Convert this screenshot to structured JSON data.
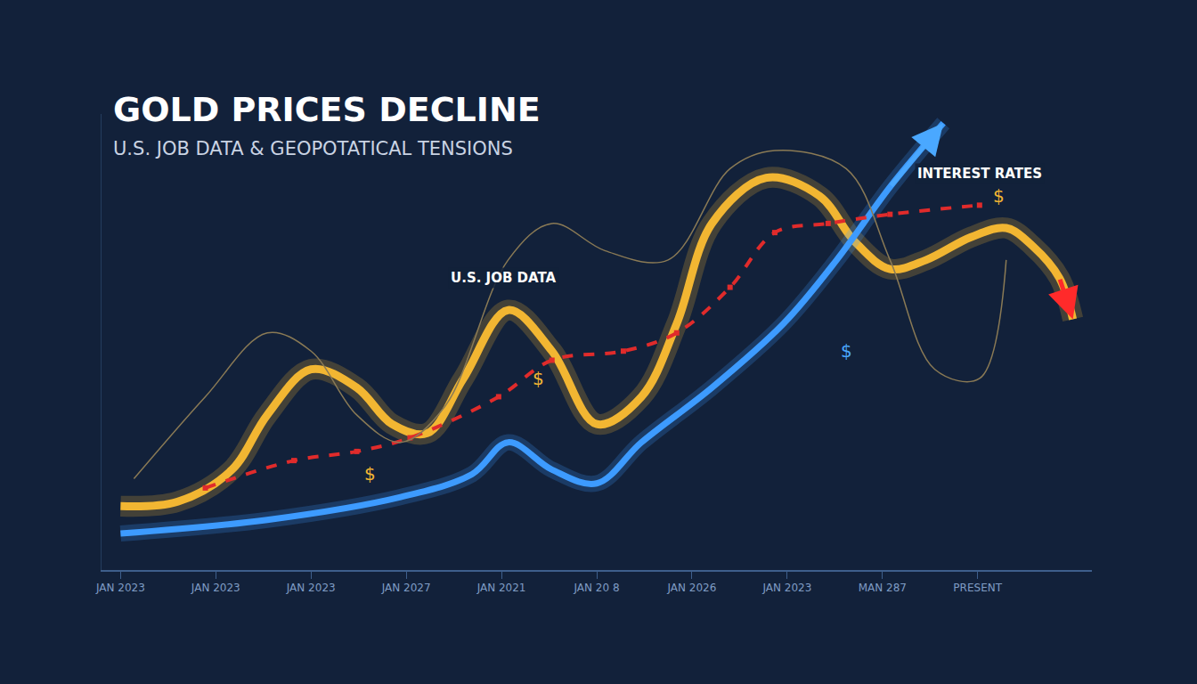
{
  "chart_data": {
    "type": "line",
    "title": "GOLD PRICES DECLINE",
    "subtitle": "U.S. JOB DATA & GEOPOTATICAL TENSIONS",
    "annotations": [
      "U.S. JOB DATA",
      "INTEREST RATES",
      "$",
      "$",
      "$",
      "$"
    ],
    "xlim": [
      -0.2,
      10.2
    ],
    "xticks": [
      {
        "value": 0,
        "label": "JAN 2023"
      },
      {
        "value": 1,
        "label": "JAN 2023"
      },
      {
        "value": 2,
        "label": "JAN 2023"
      },
      {
        "value": 3,
        "label": "JAN 2027"
      },
      {
        "value": 4,
        "label": "JAN 2021"
      },
      {
        "value": 5,
        "label": "JAN 20 8"
      },
      {
        "value": 6,
        "label": "JAN 2026"
      },
      {
        "value": 7,
        "label": "JAN 2023"
      },
      {
        "value": 8,
        "label": "MAN 287"
      },
      {
        "value": 9,
        "label": "PRESENT"
      }
    ],
    "ylim": [
      0,
      100
    ],
    "tick_labels": "x",
    "grid": false,
    "series": [
      {
        "color": "#f2b632",
        "line_style": "solid",
        "x": [
          0,
          0.6,
          1.17,
          1.54,
          2.0,
          2.48,
          2.85,
          3.22,
          3.6,
          4.07,
          4.53,
          5.0,
          5.47,
          5.84,
          6.21,
          6.78,
          7.34,
          7.71,
          8.08,
          8.46,
          8.93,
          9.3,
          9.58,
          9.86,
          10.0
        ],
        "values": [
          14,
          15,
          22,
          34,
          44,
          40,
          32,
          30,
          42,
          57,
          48,
          32,
          38,
          54,
          76,
          86,
          82,
          72,
          66,
          68,
          73,
          75,
          71,
          64,
          55
        ]
      },
      {
        "color": "#3d9bff",
        "line_style": "solid",
        "x": [
          0,
          1.54,
          2.94,
          3.69,
          4.07,
          4.53,
          5.0,
          5.47,
          6.21,
          6.96,
          7.52,
          8.08,
          8.64
        ],
        "values": [
          8,
          11,
          16,
          21,
          28,
          22,
          19,
          28,
          40,
          54,
          68,
          84,
          98
        ]
      },
      {
        "color": "#e02b2b",
        "line_style": "dash",
        "marker": "square",
        "x": [
          0.89,
          1.82,
          2.48,
          3.04,
          3.97,
          4.53,
          5.28,
          5.84,
          6.4,
          6.87,
          7.43,
          8.08,
          9.02
        ],
        "values": [
          18,
          24,
          26,
          29,
          38,
          46,
          48,
          52,
          62,
          74,
          76,
          78,
          80
        ]
      },
      {
        "color": "#8a7a55",
        "line_style": "solid",
        "x": [
          0.14,
          0.89,
          1.54,
          2.0,
          2.48,
          2.94,
          3.41,
          4.07,
          4.53,
          5.09,
          5.75,
          6.4,
          6.87,
          7.62,
          8.08,
          8.55,
          9.02,
          9.3
        ],
        "values": [
          20,
          38,
          52,
          48,
          34,
          28,
          36,
          68,
          76,
          70,
          68,
          88,
          92,
          88,
          68,
          44,
          42,
          68
        ]
      }
    ]
  }
}
